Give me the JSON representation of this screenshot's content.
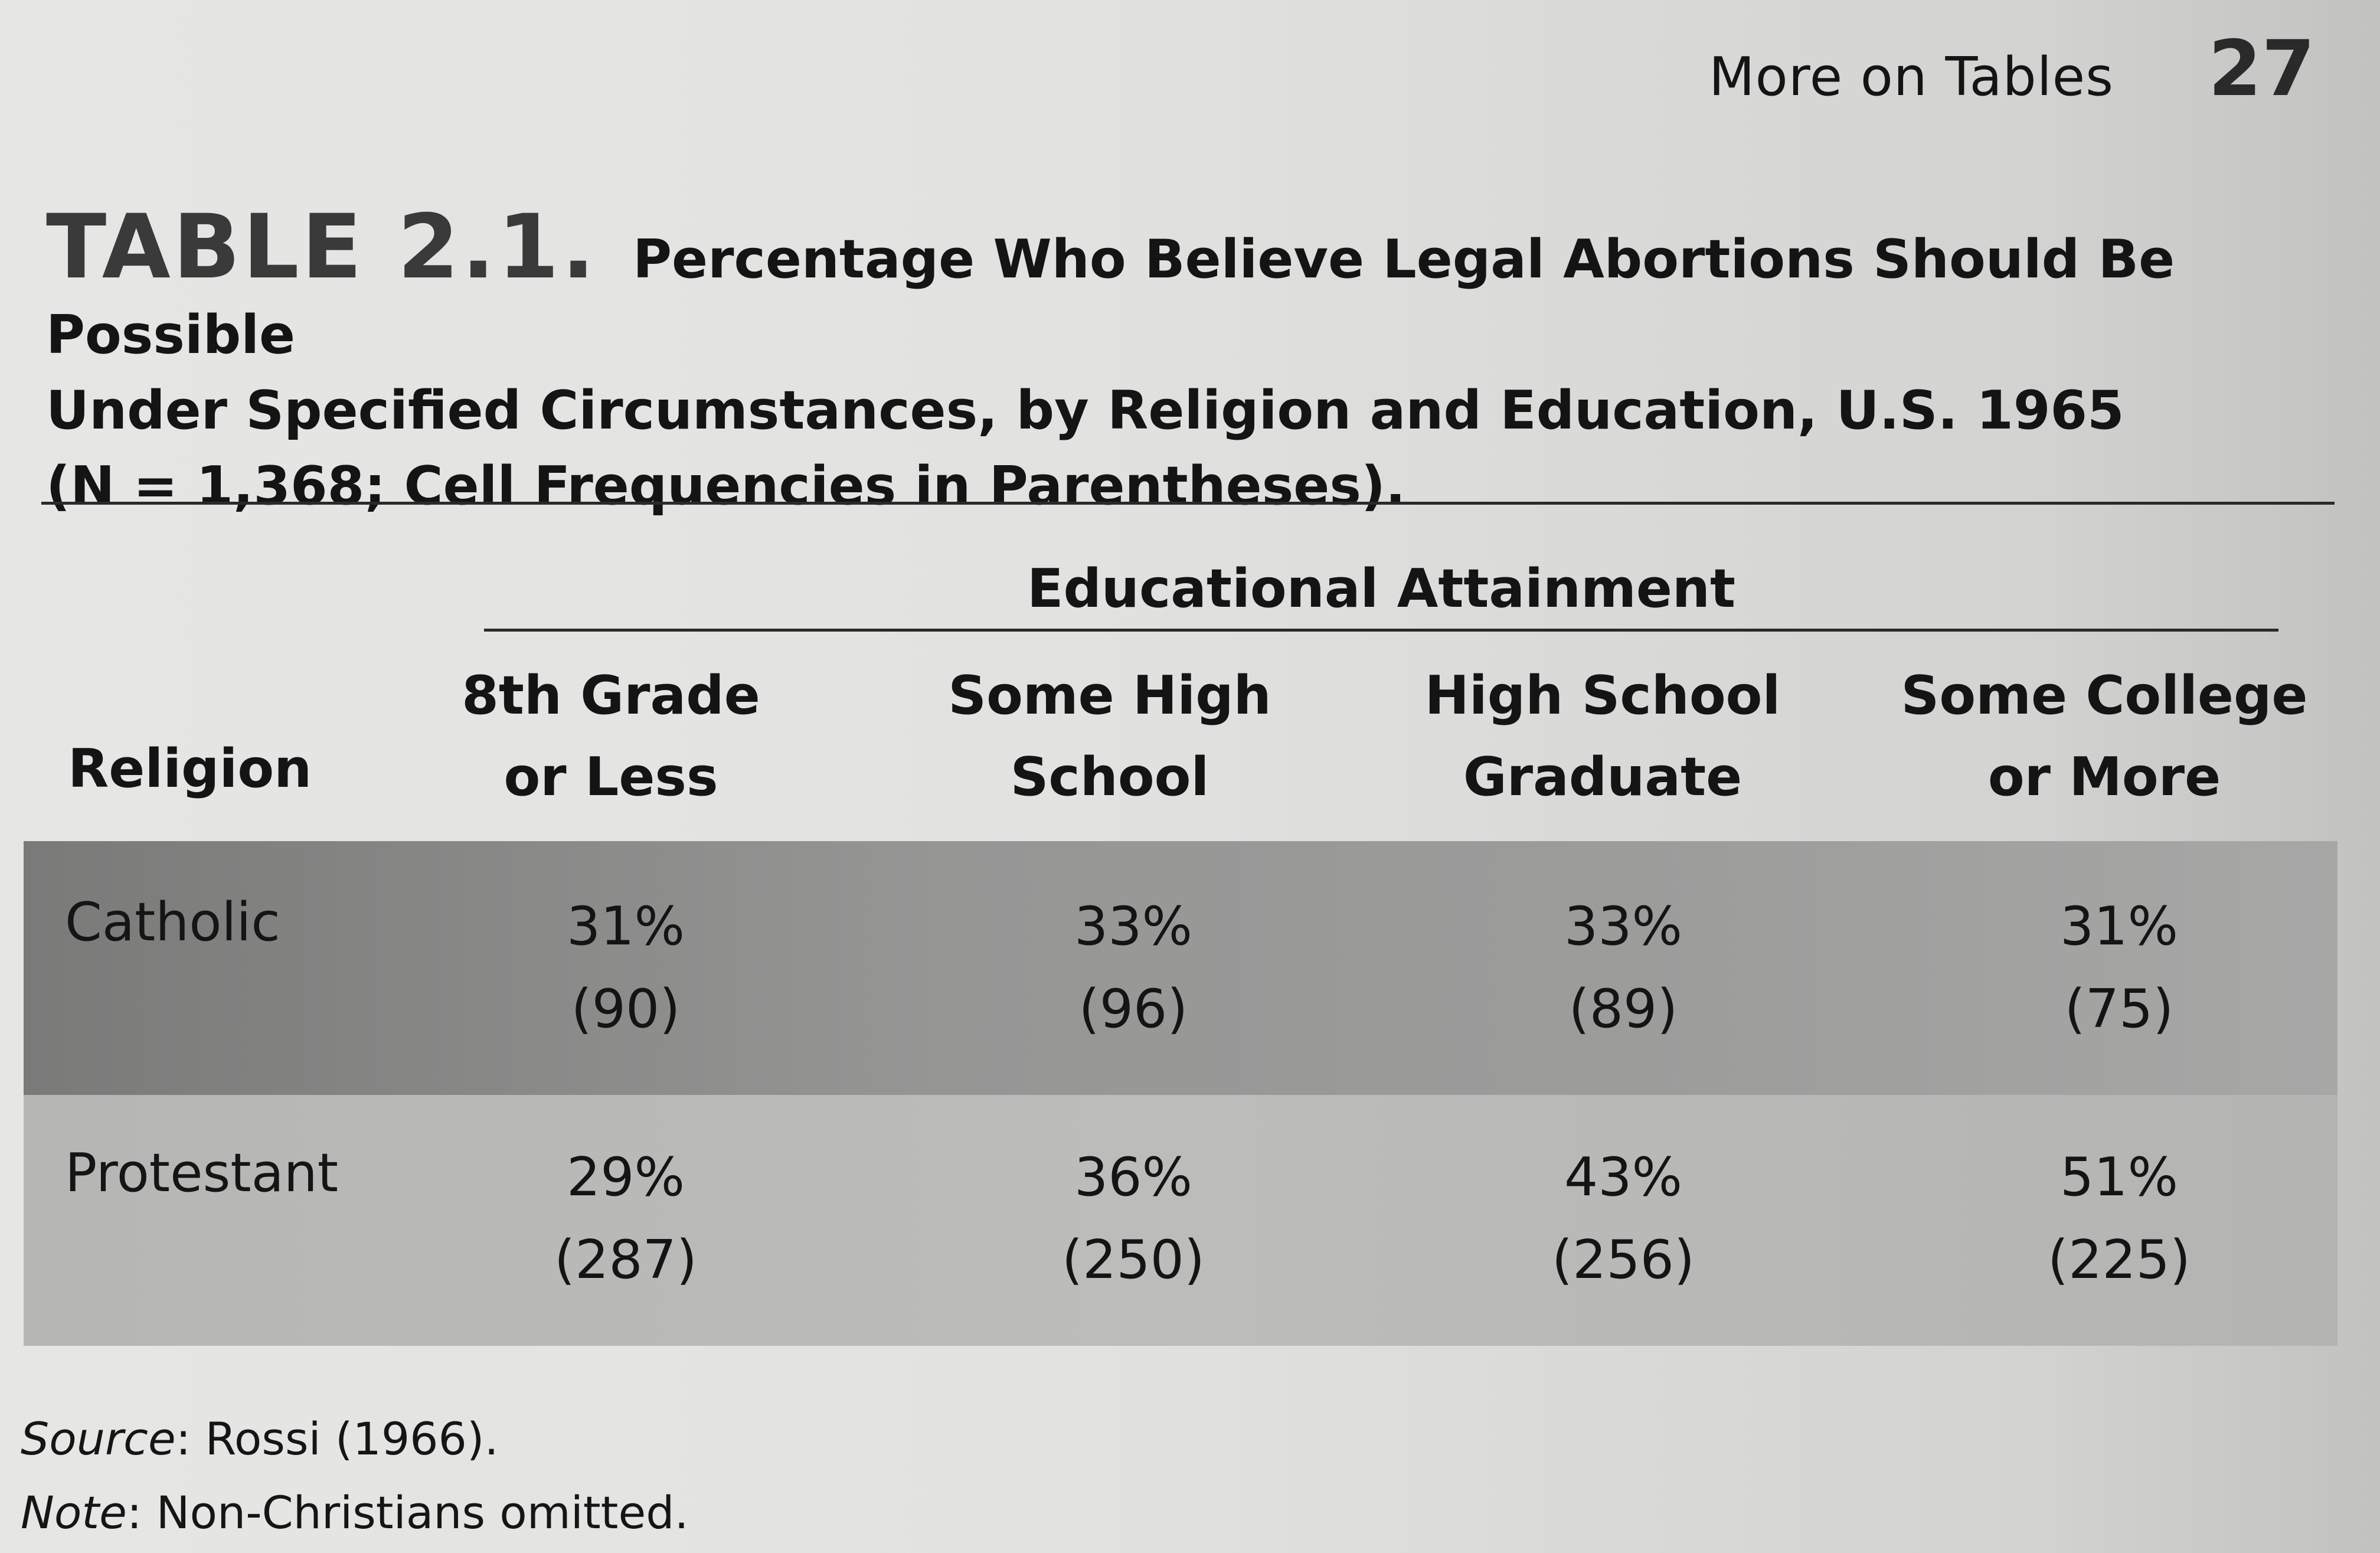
{
  "header": {
    "running_head": "More on Tables",
    "page_number": "27"
  },
  "table": {
    "label": "TABLE 2.1.",
    "title_line1": "Percentage Who Believe Legal Abortions Should Be Possible",
    "title_line2": "Under Specified Circumstances, by Religion and Education, U.S. 1965",
    "title_line3": "(N = 1,368; Cell Frequencies in Parentheses).",
    "group_header": "Educational Attainment",
    "row_header": "Religion",
    "columns": [
      {
        "line1": "8th Grade",
        "line2": "or Less"
      },
      {
        "line1": "Some High",
        "line2": "School"
      },
      {
        "line1": "High School",
        "line2": "Graduate"
      },
      {
        "line1": "Some College",
        "line2": "or More"
      }
    ],
    "rows": [
      {
        "label": "Catholic",
        "cells": [
          {
            "pct": "31%",
            "n": "(90)"
          },
          {
            "pct": "33%",
            "n": "(96)"
          },
          {
            "pct": "33%",
            "n": "(89)"
          },
          {
            "pct": "31%",
            "n": "(75)"
          }
        ]
      },
      {
        "label": "Protestant",
        "cells": [
          {
            "pct": "29%",
            "n": "(287)"
          },
          {
            "pct": "36%",
            "n": "(250)"
          },
          {
            "pct": "43%",
            "n": "(256)"
          },
          {
            "pct": "51%",
            "n": "(225)"
          }
        ]
      }
    ]
  },
  "notes": {
    "source_label": "Source",
    "source_text": ": Rossi (1966).",
    "note_label": "Note",
    "note_text": ": Non-Christians omitted."
  }
}
